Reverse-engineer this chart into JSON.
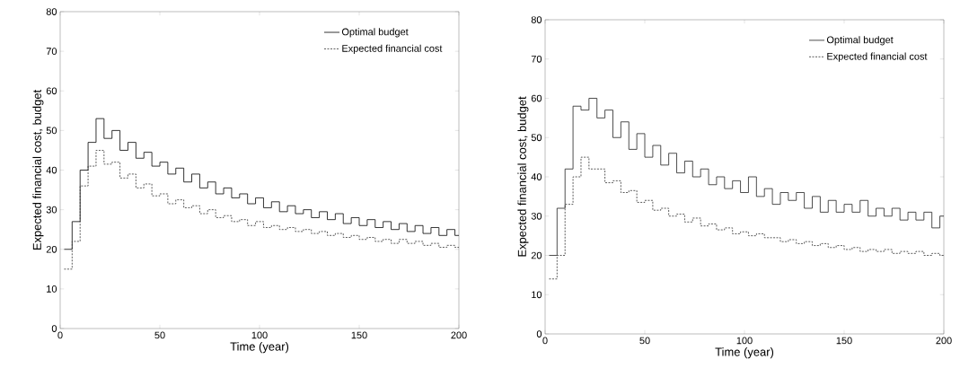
{
  "chart_data": [
    {
      "type": "step",
      "xlabel": "Time (year)",
      "ylabel": "Expected financial cost, budget",
      "xlim": [
        0,
        200
      ],
      "ylim": [
        0,
        80
      ],
      "xticks": [
        0,
        50,
        100,
        150,
        200
      ],
      "yticks": [
        0,
        10,
        20,
        30,
        40,
        50,
        60,
        70,
        80
      ],
      "grid": false,
      "legend": "top right",
      "x": [
        2,
        6,
        10,
        14,
        18,
        22,
        26,
        30,
        34,
        38,
        42,
        46,
        50,
        54,
        58,
        62,
        66,
        70,
        74,
        78,
        82,
        86,
        90,
        94,
        98,
        102,
        106,
        110,
        114,
        118,
        122,
        126,
        130,
        134,
        138,
        142,
        146,
        150,
        154,
        158,
        162,
        166,
        170,
        174,
        178,
        182,
        186,
        190,
        194,
        198,
        200
      ],
      "series": [
        {
          "name": "Optimal budget",
          "color": "#000000",
          "line_style": "solid",
          "values": [
            20,
            27,
            40,
            47,
            53,
            48,
            50,
            45,
            47,
            43,
            44.5,
            41,
            42,
            39,
            40.5,
            37,
            39,
            35.5,
            37,
            34,
            35.5,
            33,
            34,
            31.5,
            33,
            30.5,
            32,
            29.5,
            31,
            29,
            30,
            28,
            29.5,
            27.5,
            29,
            26.5,
            28,
            26,
            27.5,
            25.5,
            27,
            25,
            26.5,
            24.5,
            26,
            24,
            25.5,
            23.5,
            25,
            23.5,
            23.5
          ]
        },
        {
          "name": "Expected financial cost",
          "color": "#333333",
          "line_style": "dashed",
          "values": [
            15,
            22,
            36,
            41,
            45,
            41.5,
            42,
            38,
            39,
            35.5,
            36.5,
            33.5,
            34,
            31.5,
            32.5,
            30.5,
            31,
            29,
            30,
            28,
            28.5,
            27,
            27.5,
            26,
            27,
            25.5,
            26,
            25,
            25.5,
            24.5,
            25,
            24,
            24.5,
            23.5,
            24,
            23,
            23.5,
            22.5,
            23,
            22,
            22.5,
            21.5,
            22.5,
            21.5,
            22,
            21,
            21.5,
            20.5,
            21,
            20.5,
            20.5
          ]
        }
      ]
    },
    {
      "type": "step",
      "xlabel": "Time (year)",
      "ylabel": "Expected financial cost, budget",
      "xlim": [
        0,
        200
      ],
      "ylim": [
        0,
        80
      ],
      "xticks": [
        0,
        50,
        100,
        150,
        200
      ],
      "yticks": [
        0,
        10,
        20,
        30,
        40,
        50,
        60,
        70,
        80
      ],
      "grid": false,
      "legend": "top right",
      "x": [
        2,
        6,
        10,
        14,
        18,
        22,
        26,
        30,
        34,
        38,
        42,
        46,
        50,
        54,
        58,
        62,
        66,
        70,
        74,
        78,
        82,
        86,
        90,
        94,
        98,
        102,
        106,
        110,
        114,
        118,
        122,
        126,
        130,
        134,
        138,
        142,
        146,
        150,
        154,
        158,
        162,
        166,
        170,
        174,
        178,
        182,
        186,
        190,
        194,
        198,
        200
      ],
      "series": [
        {
          "name": "Optimal budget",
          "color": "#222222",
          "line_style": "solid",
          "values": [
            20,
            32,
            42,
            58,
            57,
            60,
            55,
            57,
            50,
            54,
            47,
            51,
            45,
            48,
            43,
            46,
            41,
            44,
            40,
            42,
            38,
            40,
            37,
            39,
            36,
            40,
            35,
            37,
            33,
            36,
            34,
            36,
            32,
            35,
            31,
            34,
            31,
            33,
            31,
            34,
            30,
            32,
            30,
            32,
            29,
            31,
            29,
            31,
            27,
            30,
            30
          ]
        },
        {
          "name": "Expected financial cost",
          "color": "#333333",
          "line_style": "dashed",
          "values": [
            14,
            20,
            33,
            40,
            45,
            42,
            42,
            38.5,
            39,
            36,
            36.5,
            33.5,
            34,
            31.5,
            32,
            30,
            30.5,
            28.5,
            29.5,
            27.5,
            28,
            26.5,
            27,
            25.5,
            26,
            25,
            25.5,
            24.5,
            24.5,
            23.5,
            24,
            23,
            23.5,
            22.5,
            23,
            22,
            22.5,
            21.5,
            22,
            21,
            21.5,
            21,
            21.5,
            20.5,
            21,
            20.5,
            21,
            20,
            20.5,
            20,
            20
          ]
        }
      ]
    }
  ]
}
